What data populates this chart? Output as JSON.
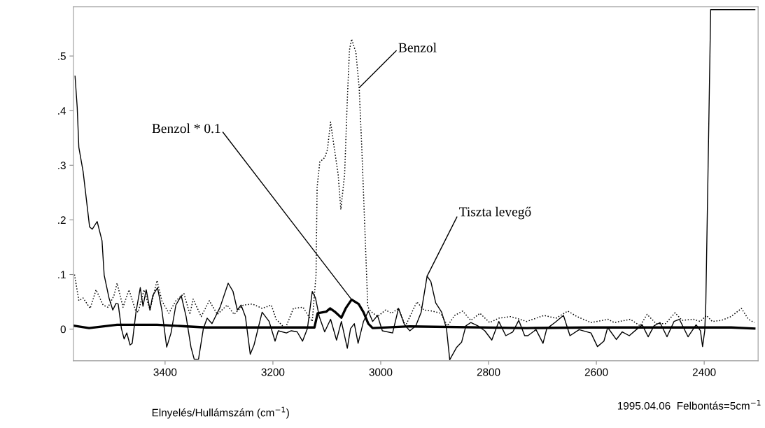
{
  "chart_data": {
    "type": "line",
    "xlabel": "Elnyelés/Hullámszám (cm$^{−1}$)",
    "xlim": [
      3570,
      2300
    ],
    "xticks": [
      3400,
      3200,
      3000,
      2800,
      2600,
      2400
    ],
    "ylim": [
      -0.058,
      0.59
    ],
    "yticks": [
      0,
      {
        "value": 0.1,
        "label": ".1"
      },
      {
        "value": 0.2,
        "label": ".2"
      },
      {
        "value": 0.3,
        "label": ".3"
      },
      {
        "value": 0.4,
        "label": ".4"
      },
      {
        "value": 0.5,
        "label": ".5"
      }
    ],
    "grid": false,
    "marker": "none",
    "series": [
      {
        "color": "#000000",
        "line_style": "solid",
        "x": [
          3567,
          3563,
          3560,
          3552,
          3540,
          3535,
          3526,
          3517,
          3513,
          3504,
          3497,
          3491,
          3487,
          3481,
          3476,
          3471,
          3465,
          3461,
          3454,
          3446,
          3441,
          3435,
          3428,
          3423,
          3414,
          3406,
          3397,
          3389,
          3380,
          3370,
          3361,
          3352,
          3346,
          3338,
          3329,
          3322,
          3313,
          3298,
          3283,
          3274,
          3266,
          3259,
          3251,
          3242,
          3235,
          3220,
          3207,
          3196,
          3190,
          3175,
          3166,
          3155,
          3145,
          3136,
          3127,
          3121,
          3114,
          3104,
          3093,
          3082,
          3073,
          3062,
          3056,
          3049,
          3042,
          3032,
          3023,
          3015,
          3006,
          2997,
          2978,
          2967,
          2956,
          2946,
          2935,
          2925,
          2914,
          2907,
          2898,
          2887,
          2878,
          2872,
          2859,
          2850,
          2842,
          2833,
          2820,
          2807,
          2794,
          2781,
          2768,
          2755,
          2744,
          2733,
          2727,
          2712,
          2699,
          2692,
          2677,
          2661,
          2649,
          2632,
          2610,
          2598,
          2586,
          2579,
          2563,
          2552,
          2539,
          2526,
          2515,
          2504,
          2493,
          2482,
          2469,
          2456,
          2446,
          2430,
          2415,
          2407,
          2403,
          2399,
          2397,
          2393,
          2388,
          2306
        ],
        "values": [
          0.463,
          0.406,
          0.333,
          0.288,
          0.187,
          0.183,
          0.197,
          0.162,
          0.099,
          0.057,
          0.035,
          0.047,
          0.046,
          0.001,
          -0.018,
          -0.007,
          -0.029,
          -0.026,
          0.031,
          0.076,
          0.042,
          0.072,
          0.035,
          0.061,
          0.076,
          0.035,
          -0.033,
          -0.007,
          0.044,
          0.061,
          0.023,
          -0.033,
          -0.055,
          -0.055,
          0.001,
          0.02,
          0.01,
          0.04,
          0.084,
          0.069,
          0.035,
          0.044,
          0.023,
          -0.046,
          -0.029,
          0.031,
          0.014,
          -0.022,
          -0.003,
          -0.007,
          -0.003,
          -0.005,
          -0.022,
          0.001,
          0.069,
          0.057,
          0.023,
          -0.005,
          0.018,
          -0.02,
          0.014,
          -0.035,
          0.001,
          0.01,
          -0.026,
          0.014,
          0.033,
          0.014,
          0.025,
          -0.003,
          -0.007,
          0.038,
          0.008,
          -0.003,
          0.006,
          0.031,
          0.097,
          0.087,
          0.048,
          0.031,
          0.001,
          -0.056,
          -0.033,
          -0.024,
          0.006,
          0.012,
          0.006,
          -0.003,
          -0.02,
          0.014,
          -0.012,
          -0.005,
          0.016,
          -0.012,
          -0.012,
          -0.001,
          -0.026,
          0.001,
          0.012,
          0.025,
          -0.012,
          -0.001,
          -0.007,
          -0.032,
          -0.022,
          0.003,
          -0.019,
          -0.005,
          -0.012,
          -0.001,
          0.008,
          -0.014,
          0.006,
          0.012,
          -0.014,
          0.014,
          0.018,
          -0.014,
          0.008,
          -0.003,
          -0.032,
          -0.003,
          0.048,
          0.283,
          0.585,
          0.585
        ]
      },
      {
        "color": "#000000",
        "line_style": "dotted",
        "x": [
          3568,
          3560,
          3552,
          3539,
          3528,
          3515,
          3506,
          3495,
          3489,
          3478,
          3467,
          3455,
          3450,
          3439,
          3428,
          3415,
          3406,
          3393,
          3380,
          3365,
          3354,
          3348,
          3333,
          3318,
          3303,
          3285,
          3272,
          3255,
          3238,
          3220,
          3203,
          3194,
          3177,
          3162,
          3144,
          3136,
          3127,
          3120,
          3118,
          3113,
          3104,
          3099,
          3093,
          3087,
          3079,
          3074,
          3067,
          3062,
          3058,
          3054,
          3046,
          3040,
          3035,
          3028,
          3024,
          3019,
          3006,
          2991,
          2980,
          2967,
          2954,
          2933,
          2920,
          2904,
          2889,
          2876,
          2863,
          2848,
          2833,
          2816,
          2798,
          2781,
          2759,
          2742,
          2729,
          2718,
          2697,
          2675,
          2653,
          2636,
          2610,
          2578,
          2567,
          2537,
          2519,
          2506,
          2489,
          2472,
          2454,
          2441,
          2420,
          2407,
          2396,
          2385,
          2368,
          2350,
          2331,
          2318,
          2307
        ],
        "values": [
          0.1,
          0.052,
          0.057,
          0.038,
          0.072,
          0.044,
          0.04,
          0.061,
          0.084,
          0.04,
          0.072,
          0.035,
          0.031,
          0.072,
          0.035,
          0.089,
          0.052,
          0.029,
          0.052,
          0.065,
          0.027,
          0.055,
          0.023,
          0.052,
          0.027,
          0.044,
          0.027,
          0.044,
          0.046,
          0.038,
          0.044,
          0.018,
          0.001,
          0.038,
          0.04,
          0.027,
          0.014,
          0.1,
          0.26,
          0.306,
          0.314,
          0.328,
          0.379,
          0.337,
          0.283,
          0.219,
          0.283,
          0.42,
          0.511,
          0.531,
          0.506,
          0.442,
          0.328,
          0.146,
          0.041,
          0.033,
          0.023,
          0.035,
          0.029,
          0.038,
          0.006,
          0.05,
          0.035,
          0.033,
          0.029,
          0.006,
          0.025,
          0.033,
          0.016,
          0.029,
          0.012,
          0.02,
          0.023,
          0.018,
          0.014,
          0.018,
          0.025,
          0.02,
          0.033,
          0.023,
          0.012,
          0.018,
          0.012,
          0.018,
          0.006,
          0.027,
          0.01,
          0.01,
          0.03,
          0.016,
          0.018,
          0.014,
          0.025,
          0.014,
          0.016,
          0.023,
          0.038,
          0.018,
          0.012
        ]
      },
      {
        "color": "#000000",
        "line_style": "solid",
        "x": [
          3568,
          3541,
          3489,
          3415,
          3324,
          3144,
          3136,
          3123,
          3117,
          3101,
          3094,
          3084,
          3073,
          3065,
          3054,
          3041,
          3032,
          3023,
          3015,
          2946,
          2729,
          2610,
          2350,
          2307
        ],
        "values": [
          0.006,
          0.002,
          0.008,
          0.008,
          0.003,
          0.003,
          0.003,
          0.003,
          0.029,
          0.032,
          0.038,
          0.031,
          0.021,
          0.038,
          0.054,
          0.046,
          0.031,
          0.01,
          0.002,
          0.005,
          0.002,
          0.003,
          0.003,
          0.001
        ]
      }
    ],
    "annotations": [
      {
        "text": "Benzol * 0.1",
        "x": 3054,
        "y": 0.054
      },
      {
        "text": "Benzol",
        "x": 3040,
        "y": 0.442
      },
      {
        "text": "Tiszta levegő",
        "x": 2914,
        "y": 0.097
      },
      "1995.04.06  Felbontás=5cm$^{−1}$"
    ]
  }
}
